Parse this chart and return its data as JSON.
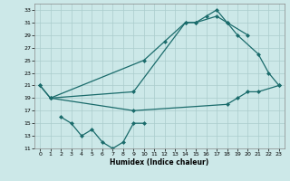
{
  "xlabel": "Humidex (Indice chaleur)",
  "bg_color": "#cce8e8",
  "grid_color": "#aacccc",
  "line_color": "#1a6b6b",
  "s1": {
    "x": [
      0,
      1,
      10,
      12,
      14,
      15,
      16,
      17,
      18,
      20
    ],
    "y": [
      21,
      19,
      25,
      28,
      31,
      31,
      32,
      33,
      31,
      29
    ]
  },
  "s2": {
    "x": [
      0,
      1,
      9,
      14,
      15,
      17,
      18,
      19,
      21,
      22,
      23
    ],
    "y": [
      21,
      19,
      20,
      31,
      31,
      32,
      31,
      29,
      26,
      23,
      21
    ]
  },
  "s3": {
    "x": [
      1,
      9,
      18,
      19,
      20,
      21,
      23
    ],
    "y": [
      19,
      17,
      18,
      19,
      20,
      20,
      21
    ]
  },
  "s4": {
    "x": [
      2,
      3,
      4,
      5,
      6,
      7,
      8,
      9,
      10
    ],
    "y": [
      16,
      15,
      13,
      14,
      12,
      11,
      12,
      15,
      15
    ]
  },
  "ylim": [
    11,
    34
  ],
  "xlim": [
    -0.5,
    23.5
  ],
  "yticks": [
    11,
    13,
    15,
    17,
    19,
    21,
    23,
    25,
    27,
    29,
    31,
    33
  ],
  "xticks": [
    0,
    1,
    2,
    3,
    4,
    5,
    6,
    7,
    8,
    9,
    10,
    11,
    12,
    13,
    14,
    15,
    16,
    17,
    18,
    19,
    20,
    21,
    22,
    23
  ]
}
